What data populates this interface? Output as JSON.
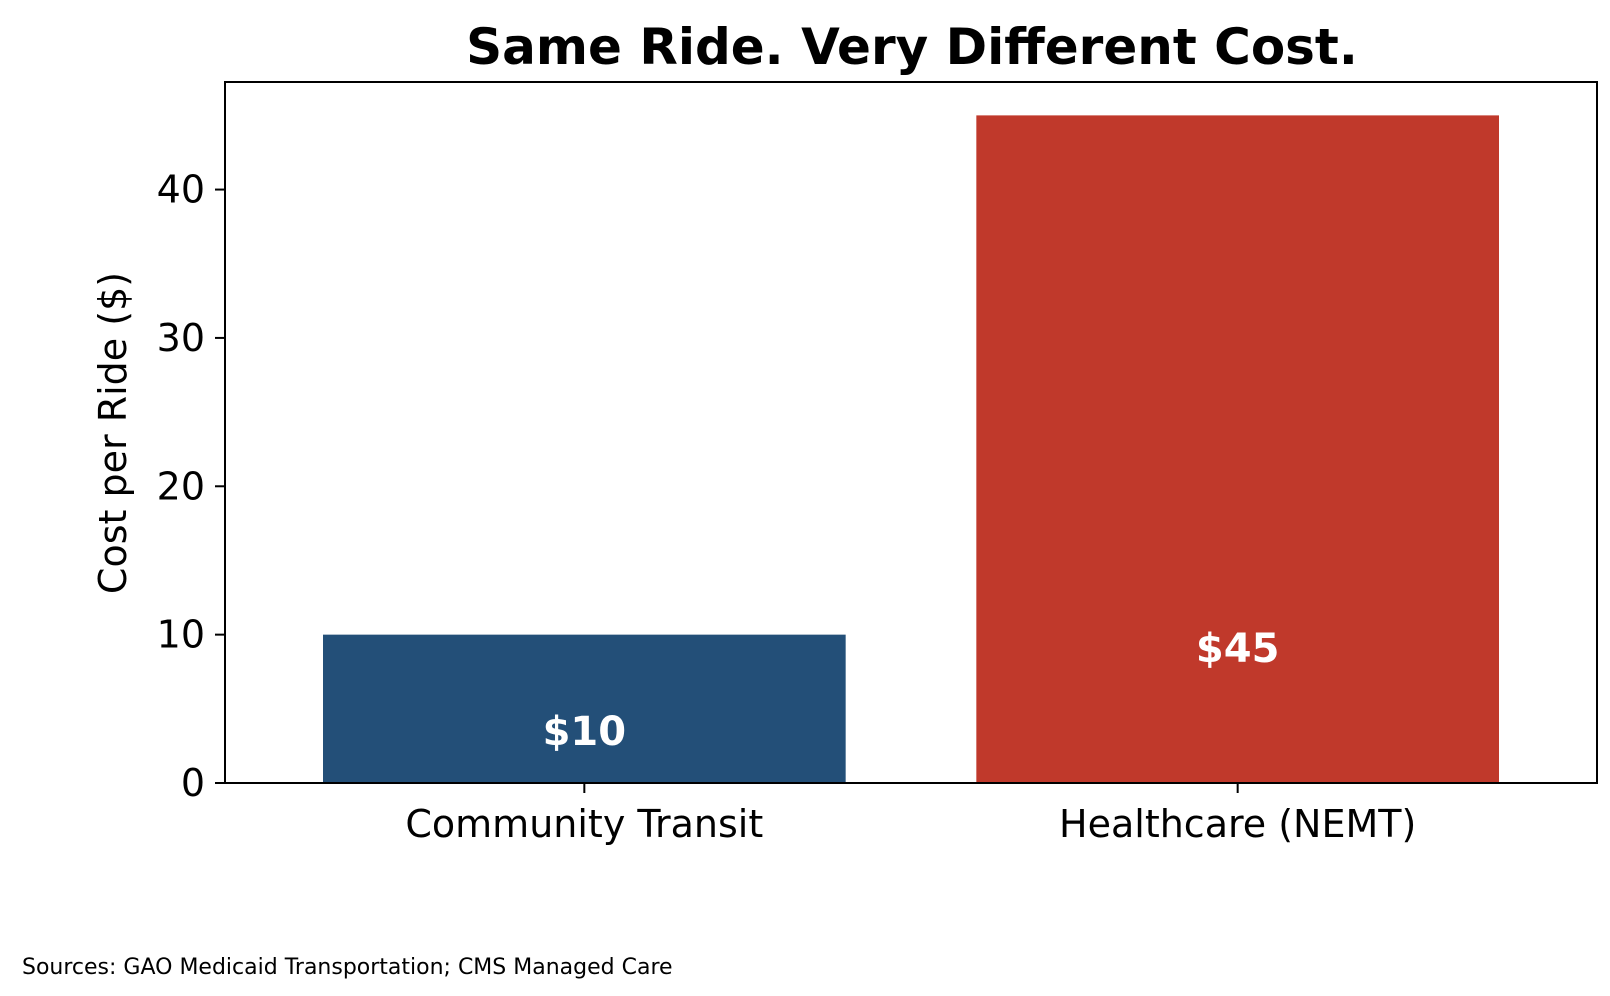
{
  "chart_data": {
    "type": "bar",
    "title": "Same Ride. Very Different Cost.",
    "categories": [
      "Community Transit",
      "Healthcare (NEMT)"
    ],
    "values": [
      10,
      45
    ],
    "value_labels": [
      "$10",
      "$45"
    ],
    "colors": [
      "#234f78",
      "#c0392b"
    ],
    "xlabel": "",
    "ylabel": "Cost per Ride ($)",
    "ylim": [
      0,
      47.25
    ],
    "yticks": [
      0,
      10,
      20,
      30,
      40
    ],
    "grid": false,
    "legend": "none"
  },
  "source": "Sources: GAO Medicaid Transportation; CMS Managed Care"
}
